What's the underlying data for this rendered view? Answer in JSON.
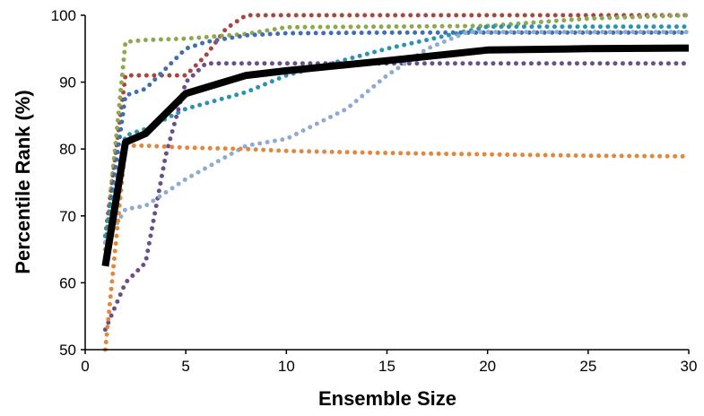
{
  "chart_data": {
    "type": "line",
    "title": "",
    "xlabel": "Ensemble Size",
    "ylabel": "Percentile Rank (%)",
    "xlim": [
      0,
      30
    ],
    "ylim": [
      50,
      100
    ],
    "xticks": [
      0,
      5,
      10,
      15,
      20,
      25,
      30
    ],
    "yticks": [
      50,
      60,
      70,
      80,
      90,
      100
    ],
    "grid": false,
    "legend": "none",
    "series": [
      {
        "style": "dotted",
        "color": "#a9463f",
        "x": [
          1,
          2,
          3,
          4,
          5,
          6,
          7,
          8,
          10,
          15,
          20,
          25,
          30
        ],
        "y": [
          67,
          91,
          91,
          91,
          91,
          94,
          98,
          100,
          100,
          100,
          100,
          100,
          100
        ]
      },
      {
        "style": "dotted",
        "color": "#8fa84f",
        "x": [
          1,
          2,
          3,
          5,
          8,
          10,
          15,
          20,
          25,
          30
        ],
        "y": [
          65,
          96,
          96.3,
          96.5,
          97.2,
          98.2,
          98.3,
          98.4,
          99.5,
          100
        ]
      },
      {
        "style": "dotted",
        "color": "#3f6fb0",
        "x": [
          1,
          2,
          3,
          4,
          5,
          6,
          8,
          10,
          15,
          20,
          25,
          30
        ],
        "y": [
          66,
          88,
          89,
          92,
          95,
          96,
          97,
          97.3,
          97.4,
          97.4,
          97.4,
          97.4
        ]
      },
      {
        "style": "dotted",
        "color": "#2a93b0",
        "x": [
          1,
          2,
          3,
          5,
          8,
          10,
          15,
          20,
          25,
          30
        ],
        "y": [
          67,
          82,
          83,
          86,
          88.5,
          91,
          95,
          98.3,
          98.3,
          98.3
        ]
      },
      {
        "style": "dotted",
        "color": "#6b4e8c",
        "x": [
          1,
          2,
          3,
          4,
          5,
          6,
          8,
          10,
          15,
          20,
          25,
          30
        ],
        "y": [
          53,
          60,
          63,
          79,
          90,
          92.8,
          92.8,
          92.8,
          92.8,
          92.8,
          92.8,
          92.8
        ]
      },
      {
        "style": "dotted",
        "color": "#8fabd3",
        "x": [
          1,
          2,
          3,
          5,
          8,
          10,
          13,
          15,
          17,
          19,
          20,
          25,
          30
        ],
        "y": [
          66,
          71,
          71.5,
          75.5,
          80.5,
          81.5,
          86,
          91,
          95,
          97.5,
          97.5,
          97.5,
          97.5
        ]
      },
      {
        "style": "dotted",
        "color": "#e0883d",
        "x": [
          1,
          2,
          3,
          5,
          8,
          10,
          15,
          20,
          25,
          30
        ],
        "y": [
          50,
          80.5,
          80.5,
          80.2,
          80,
          79.7,
          79.4,
          79.2,
          79,
          78.9
        ]
      },
      {
        "style": "solid",
        "color": "#000000",
        "x": [
          1,
          2,
          3,
          5,
          8,
          10,
          15,
          20,
          25,
          30
        ],
        "y": [
          62.5,
          81,
          82.3,
          88.3,
          91,
          91.7,
          93.2,
          94.8,
          95,
          95.1
        ]
      }
    ]
  }
}
